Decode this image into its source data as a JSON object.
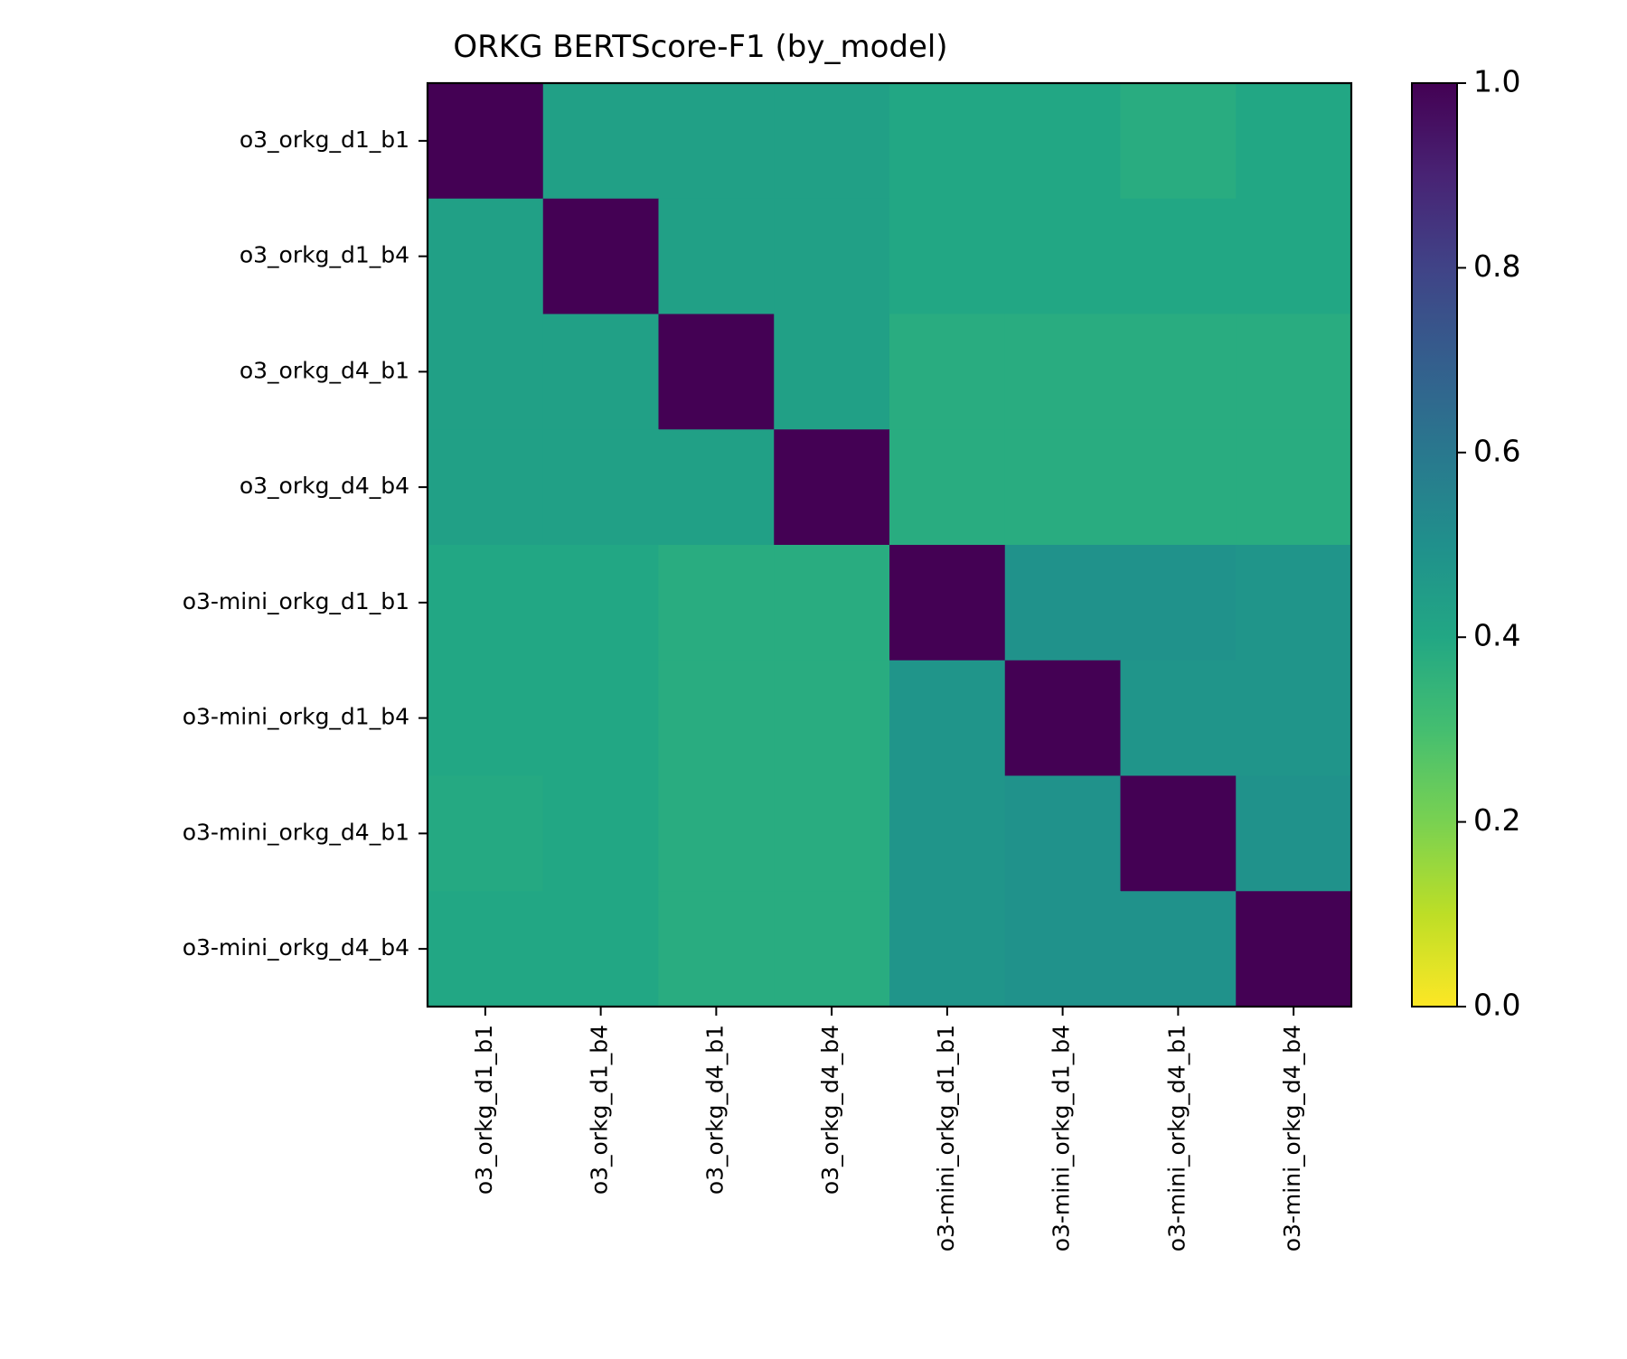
{
  "chart_data": {
    "type": "heatmap",
    "title": "ORKG BERTScore-F1 (by_model)",
    "xlabel": "",
    "ylabel": "",
    "rows": [
      "o3_orkg_d1_b1",
      "o3_orkg_d1_b4",
      "o3_orkg_d4_b1",
      "o3_orkg_d4_b4",
      "o3-mini_orkg_d1_b1",
      "o3-mini_orkg_d1_b4",
      "o3-mini_orkg_d4_b1",
      "o3-mini_orkg_d4_b4"
    ],
    "columns": [
      "o3_orkg_d1_b1",
      "o3_orkg_d1_b4",
      "o3_orkg_d4_b1",
      "o3_orkg_d4_b4",
      "o3-mini_orkg_d1_b1",
      "o3-mini_orkg_d1_b4",
      "o3-mini_orkg_d4_b1",
      "o3-mini_orkg_d4_b4"
    ],
    "values": [
      [
        1.0,
        0.43,
        0.43,
        0.43,
        0.4,
        0.4,
        0.38,
        0.4
      ],
      [
        0.43,
        1.0,
        0.43,
        0.43,
        0.4,
        0.4,
        0.4,
        0.4
      ],
      [
        0.43,
        0.43,
        1.0,
        0.43,
        0.38,
        0.38,
        0.38,
        0.38
      ],
      [
        0.43,
        0.43,
        0.43,
        1.0,
        0.38,
        0.38,
        0.38,
        0.38
      ],
      [
        0.4,
        0.4,
        0.38,
        0.38,
        1.0,
        0.49,
        0.49,
        0.48
      ],
      [
        0.4,
        0.4,
        0.38,
        0.38,
        0.48,
        1.0,
        0.48,
        0.48
      ],
      [
        0.39,
        0.4,
        0.38,
        0.38,
        0.48,
        0.49,
        1.0,
        0.49
      ],
      [
        0.4,
        0.4,
        0.38,
        0.38,
        0.48,
        0.49,
        0.49,
        1.0
      ]
    ],
    "colorbar": {
      "colormap": "viridis_r",
      "range": [
        0.0,
        1.0
      ],
      "ticks": [
        "0.0",
        "0.2",
        "0.4",
        "0.6",
        "0.8",
        "1.0"
      ],
      "placement": "right"
    },
    "grid": false
  }
}
